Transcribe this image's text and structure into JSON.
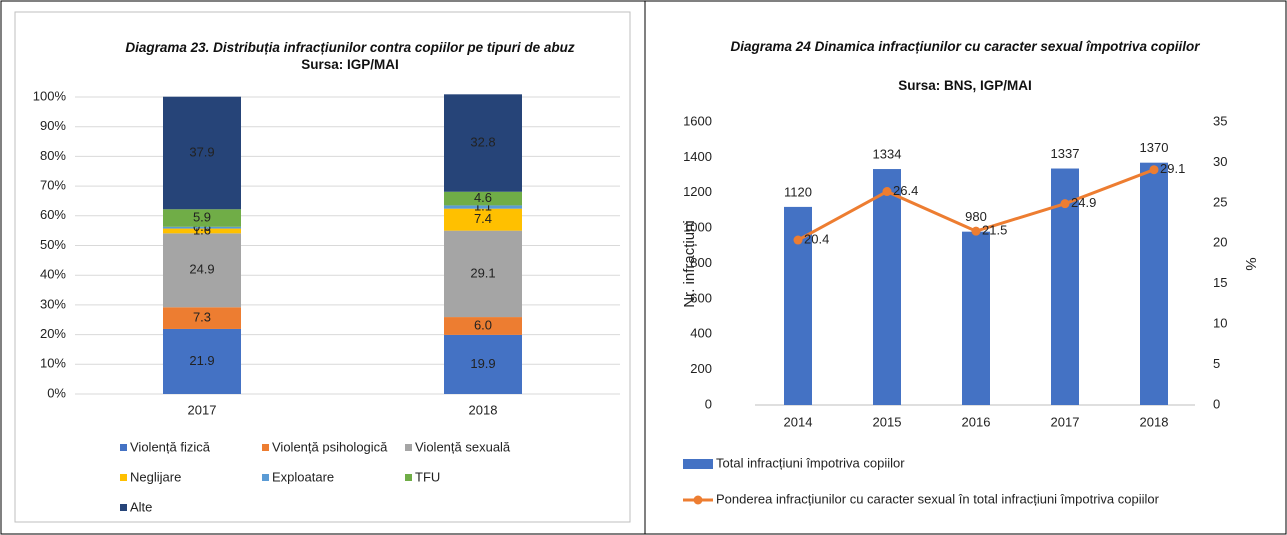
{
  "chart_data": [
    {
      "type": "stacked-bar",
      "title": "Diagrama 23. Distribuția infracțiunilor contra copiilor pe tipuri de abuz",
      "subtitle": "Sursa: IGP/MAI",
      "categories": [
        "2017",
        "2018"
      ],
      "series": [
        {
          "name": "Violență fizică",
          "color": "#4472c4",
          "values": [
            21.9,
            19.9
          ]
        },
        {
          "name": "Violență psihologică",
          "color": "#ed7d31",
          "values": [
            7.3,
            6.0
          ],
          "value_labels": [
            "7.3",
            "6.0"
          ]
        },
        {
          "name": "Violență sexuală",
          "color": "#a5a5a5",
          "values": [
            24.9,
            29.1
          ]
        },
        {
          "name": "Neglijare",
          "color": "#ffc000",
          "values": [
            1.6,
            7.4
          ]
        },
        {
          "name": "Exploatare",
          "color": "#5b9bd5",
          "values": [
            0.6,
            1.1
          ]
        },
        {
          "name": "TFU",
          "color": "#70ad47",
          "values": [
            5.9,
            4.6
          ]
        },
        {
          "name": "Alte",
          "color": "#264478",
          "values": [
            37.9,
            32.8
          ]
        }
      ],
      "ylim": [
        0,
        100
      ],
      "yticks": [
        {
          "value": 0,
          "label": "0%"
        },
        {
          "value": 10,
          "label": "10%"
        },
        {
          "value": 20,
          "label": "20%"
        },
        {
          "value": 30,
          "label": "30%"
        },
        {
          "value": 40,
          "label": "40%"
        },
        {
          "value": 50,
          "label": "50%"
        },
        {
          "value": 60,
          "label": "60%"
        },
        {
          "value": 70,
          "label": "70%"
        },
        {
          "value": 80,
          "label": "80%"
        },
        {
          "value": 90,
          "label": "90%"
        },
        {
          "value": 100,
          "label": "100%"
        }
      ],
      "grid": true,
      "legend": "bottom"
    },
    {
      "type": "bar-line",
      "title": "Diagrama 24 Dinamica infracțiunilor cu caracter sexual împotriva copiilor",
      "subtitle": "Sursa: BNS, IGP/MAI",
      "categories": [
        "2014",
        "2015",
        "2016",
        "2017",
        "2018"
      ],
      "series": [
        {
          "name": "Total infracțiuni împotriva copiilor",
          "color": "#4472c4",
          "type": "bar",
          "values": [
            1120,
            1334,
            980,
            1337,
            1370
          ]
        },
        {
          "name": "Ponderea infracțiunilor cu caracter sexual în total infracțiuni împotriva copiilor",
          "color": "#ed7d31",
          "type": "line",
          "axis": "y2",
          "values": [
            20.4,
            26.4,
            21.5,
            24.9,
            29.1
          ]
        }
      ],
      "ylabel": "Nr. infracțiuni",
      "y2label": "%",
      "ylim": [
        0,
        1600
      ],
      "yticks": [
        0,
        200,
        400,
        600,
        800,
        1000,
        1200,
        1400,
        1600
      ],
      "y2lim": [
        0,
        35
      ],
      "y2ticks": [
        0,
        5,
        10,
        15,
        20,
        25,
        30,
        35
      ],
      "grid": false,
      "legend": "bottom"
    }
  ]
}
